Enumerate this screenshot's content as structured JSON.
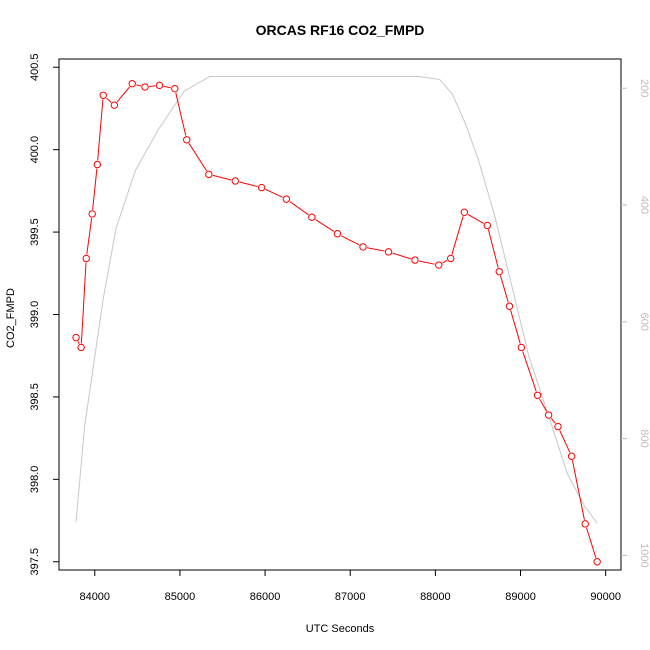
{
  "chart_data": {
    "type": "line",
    "title": "ORCAS RF16 CO2_FMPD",
    "xlabel": "UTC Seconds",
    "ylabel": "CO2_FMPD",
    "xlim": [
      83580,
      90180
    ],
    "ylim": [
      397.45,
      400.55
    ],
    "y2lim": [
      1025,
      150
    ],
    "x_ticks": [
      84000,
      85000,
      86000,
      87000,
      88000,
      89000,
      90000
    ],
    "y_ticks": [
      397.5,
      398.0,
      398.5,
      399.0,
      399.5,
      400.0,
      400.5
    ],
    "y2_ticks": [
      200,
      400,
      600,
      800,
      1000
    ],
    "x_tick_labels": [
      "84000",
      "85000",
      "86000",
      "87000",
      "88000",
      "89000",
      "90000"
    ],
    "y_tick_labels": [
      "397.5",
      "398.0",
      "398.5",
      "399.0",
      "399.5",
      "400.0",
      "400.5"
    ],
    "y2_tick_labels": [
      "200",
      "400",
      "600",
      "800",
      "1000"
    ],
    "colors": {
      "series": "#ff0000",
      "secondary": "#c8c8c8",
      "axis": "#000000",
      "axis_right": "#bdbdbd"
    },
    "series": [
      {
        "x": [
          83780,
          83840,
          83900,
          83970,
          84030,
          84100,
          84230,
          84440,
          84590,
          84760,
          84940,
          85080,
          85340,
          85650,
          85960,
          86250,
          86550,
          86850,
          87150,
          87450,
          87760,
          88040,
          88180,
          88340,
          88610,
          88750,
          88870,
          89010,
          89200,
          89330,
          89440,
          89600,
          89760,
          89900
        ],
        "y": [
          398.86,
          398.8,
          399.34,
          399.61,
          399.91,
          400.33,
          400.27,
          400.4,
          400.38,
          400.39,
          400.37,
          400.06,
          399.85,
          399.81,
          399.77,
          399.7,
          399.59,
          399.49,
          399.41,
          399.38,
          399.33,
          399.3,
          399.34,
          399.62,
          399.54,
          399.26,
          399.05,
          398.8,
          398.51,
          398.39,
          398.32,
          398.14,
          397.73,
          397.5
        ]
      },
      {
        "x": [
          83780,
          83880,
          83980,
          84100,
          84250,
          84480,
          84750,
          85050,
          85350,
          85700,
          86000,
          86500,
          87000,
          87500,
          87800,
          88050,
          88200,
          88350,
          88500,
          88700,
          88900,
          89100,
          89350,
          89550,
          89750,
          89900
        ],
        "y2": [
          943,
          780,
          680,
          560,
          440,
          340,
          270,
          205,
          180,
          180,
          180,
          180,
          180,
          180,
          180,
          185,
          210,
          260,
          320,
          420,
          540,
          660,
          770,
          860,
          915,
          945
        ]
      }
    ]
  }
}
